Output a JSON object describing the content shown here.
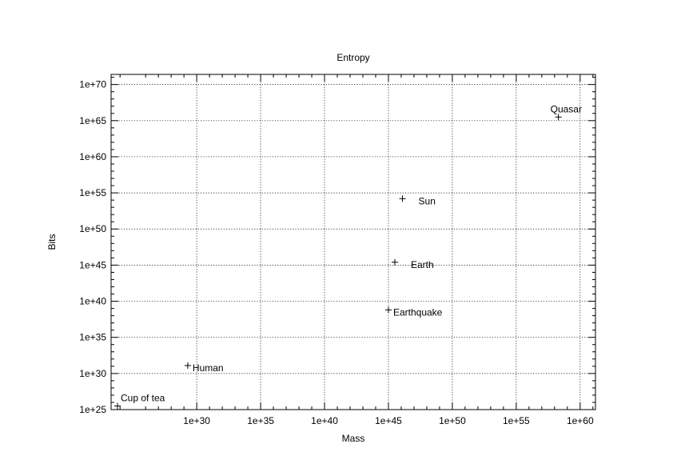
{
  "chart_data": {
    "type": "scatter",
    "title": "Entropy",
    "xlabel": "Mass",
    "ylabel": "Bits",
    "x_scale": "log",
    "y_scale": "log",
    "xlim_exp": [
      23.3,
      61.2
    ],
    "ylim_exp": [
      25,
      71.4
    ],
    "x_ticks": [
      {
        "exp": 30,
        "label": "1e+30"
      },
      {
        "exp": 35,
        "label": "1e+35"
      },
      {
        "exp": 40,
        "label": "1e+40"
      },
      {
        "exp": 45,
        "label": "1e+45"
      },
      {
        "exp": 50,
        "label": "1e+50"
      },
      {
        "exp": 55,
        "label": "1e+55"
      },
      {
        "exp": 60,
        "label": "1e+60"
      }
    ],
    "y_ticks": [
      {
        "exp": 25,
        "label": "1e+25"
      },
      {
        "exp": 30,
        "label": "1e+30"
      },
      {
        "exp": 35,
        "label": "1e+35"
      },
      {
        "exp": 40,
        "label": "1e+40"
      },
      {
        "exp": 45,
        "label": "1e+45"
      },
      {
        "exp": 50,
        "label": "1e+50"
      },
      {
        "exp": 55,
        "label": "1e+55"
      },
      {
        "exp": 60,
        "label": "1e+60"
      },
      {
        "exp": 65,
        "label": "1e+65"
      },
      {
        "exp": 70,
        "label": "1e+70"
      }
    ],
    "grid": true,
    "points": [
      {
        "label": "Cup of tea",
        "x_exp": 23.8,
        "y_exp": 25.5,
        "label_pos": "above-right"
      },
      {
        "label": "Human",
        "x_exp": 29.3,
        "y_exp": 31.1,
        "label_pos": "right"
      },
      {
        "label": "Earthquake",
        "x_exp": 45.0,
        "y_exp": 38.8,
        "label_pos": "right"
      },
      {
        "label": "Earth",
        "x_exp": 45.5,
        "y_exp": 45.4,
        "label_pos": "right-far"
      },
      {
        "label": "Sun",
        "x_exp": 46.1,
        "y_exp": 54.2,
        "label_pos": "right-far"
      },
      {
        "label": "Quasar",
        "x_exp": 58.3,
        "y_exp": 65.5,
        "label_pos": "above"
      }
    ]
  }
}
